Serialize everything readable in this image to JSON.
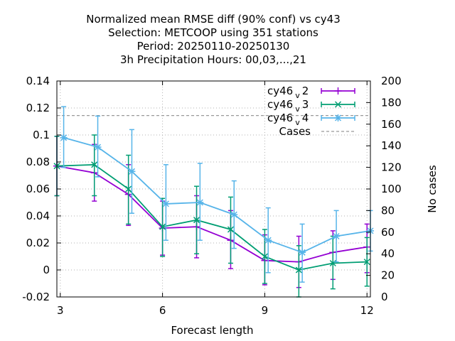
{
  "chart_data": {
    "type": "line",
    "title_lines": [
      "Normalized mean RMSE diff (90% conf) vs cy43",
      "Selection: METCOOP using   351 stations",
      "Period: 20250110-20250130",
      "3h Precipitation   Hours:  00,03,...,21"
    ],
    "xlabel": "Forecast length",
    "ylabel": "",
    "y2label": "No cases",
    "xlim": [
      2.9,
      12.1
    ],
    "ylim": [
      -0.02,
      0.14
    ],
    "y2lim": [
      0,
      200
    ],
    "xticks": [
      "3",
      "6",
      "9",
      "12"
    ],
    "yticks": [
      "-0.02",
      "0",
      "0.02",
      "0.04",
      "0.06",
      "0.08",
      "0.1",
      "0.12",
      "0.14"
    ],
    "y2ticks": [
      "0",
      "20",
      "40",
      "60",
      "80",
      "100",
      "120",
      "140",
      "160",
      "180",
      "200"
    ],
    "grid": true,
    "legend_position": "top-right",
    "series": [
      {
        "name": "cy46",
        "name_sub": "v",
        "name_suffix": "2",
        "color": "#9400d3",
        "marker": "plus",
        "x": [
          2.9,
          4,
          5,
          6,
          7,
          8,
          9,
          10,
          11,
          12
        ],
        "y": [
          0.077,
          0.072,
          0.056,
          0.031,
          0.032,
          0.022,
          0.007,
          0.006,
          0.013,
          0.017
        ],
        "err_low": [
          0.055,
          0.051,
          0.033,
          0.011,
          0.009,
          0.001,
          -0.011,
          -0.013,
          -0.007,
          -0.002
        ],
        "err_high": [
          0.099,
          0.093,
          0.078,
          0.051,
          0.055,
          0.044,
          0.026,
          0.025,
          0.029,
          0.034
        ]
      },
      {
        "name": "cy46",
        "name_sub": "v",
        "name_suffix": "3",
        "color": "#009e73",
        "marker": "cross",
        "x": [
          2.9,
          4,
          5,
          6,
          7,
          8,
          9,
          10,
          11,
          12
        ],
        "y": [
          0.077,
          0.078,
          0.06,
          0.032,
          0.037,
          0.03,
          0.01,
          0.0,
          0.005,
          0.006
        ],
        "err_low": [
          0.055,
          0.055,
          0.034,
          0.01,
          0.012,
          0.005,
          -0.01,
          -0.02,
          -0.014,
          -0.012
        ],
        "err_high": [
          0.099,
          0.1,
          0.085,
          0.053,
          0.062,
          0.054,
          0.03,
          0.018,
          0.025,
          0.024
        ]
      },
      {
        "name": "cy46",
        "name_sub": "v",
        "name_suffix": "4",
        "color": "#56b4e9",
        "marker": "star",
        "x": [
          3.1,
          4.1,
          5.1,
          6.1,
          7.1,
          8.1,
          9.1,
          10.1,
          11.1,
          12.1
        ],
        "y": [
          0.098,
          0.091,
          0.073,
          0.049,
          0.05,
          0.041,
          0.022,
          0.013,
          0.025,
          0.029
        ],
        "err_low": [
          0.076,
          0.069,
          0.042,
          0.022,
          0.022,
          0.016,
          -0.002,
          -0.009,
          0.006,
          0.014
        ],
        "err_high": [
          0.121,
          0.114,
          0.104,
          0.078,
          0.079,
          0.066,
          0.046,
          0.034,
          0.044,
          0.044
        ]
      }
    ],
    "cases": {
      "name": "Cases",
      "color": "#999999",
      "value": 168
    }
  }
}
